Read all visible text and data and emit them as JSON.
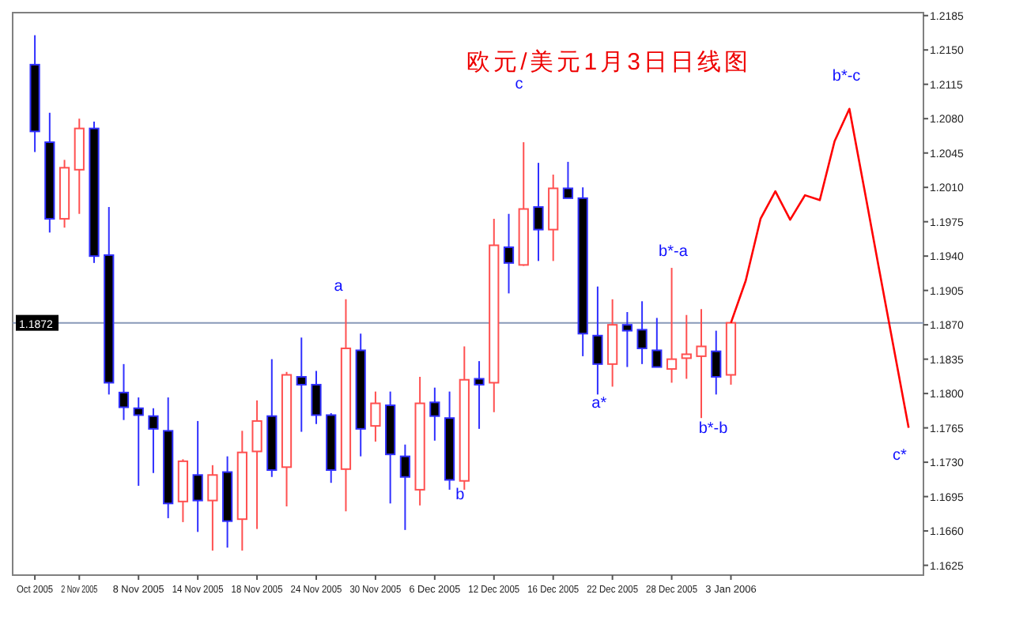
{
  "chart_data": {
    "type": "candlestick",
    "title": "欧元/美元1月3日日线图",
    "categories": [
      "Oct 2005",
      null,
      null,
      "2 Nov 2005",
      null,
      null,
      null,
      "8 Nov 2005",
      null,
      null,
      null,
      "14 Nov 2005",
      null,
      null,
      null,
      "18 Nov 2005",
      null,
      null,
      null,
      "24 Nov 2005",
      null,
      null,
      null,
      "30 Nov 2005",
      null,
      null,
      null,
      "6 Dec 2005",
      null,
      null,
      null,
      "12 Dec 2005",
      null,
      null,
      null,
      "16 Dec 2005",
      null,
      null,
      null,
      "22 Dec 2005",
      null,
      null,
      null,
      "28 Dec 2005",
      null,
      null,
      null,
      "3 Jan 2006",
      null,
      null,
      null,
      null,
      null,
      null,
      null,
      null,
      null,
      null,
      null,
      null
    ],
    "ohlc": [
      [
        1.2135,
        1.2165,
        1.2046,
        1.2067
      ],
      [
        1.2056,
        1.2086,
        1.1964,
        1.1978
      ],
      [
        1.1978,
        1.2038,
        1.1969,
        1.203
      ],
      [
        1.2028,
        1.208,
        1.1983,
        1.207
      ],
      [
        1.207,
        1.2077,
        1.1933,
        1.194
      ],
      [
        1.1941,
        1.199,
        1.1799,
        1.1811
      ],
      [
        1.1801,
        1.183,
        1.1773,
        1.1786
      ],
      [
        1.1785,
        1.1796,
        1.1706,
        1.1778
      ],
      [
        1.1777,
        1.1785,
        1.1719,
        1.1764
      ],
      [
        1.1762,
        1.1796,
        1.1673,
        1.1688
      ],
      [
        1.169,
        1.1733,
        1.1669,
        1.1731
      ],
      [
        1.1717,
        1.1772,
        1.1659,
        1.1691
      ],
      [
        1.1691,
        1.1727,
        1.164,
        1.1717
      ],
      [
        1.172,
        1.1736,
        1.1643,
        1.167
      ],
      [
        1.1672,
        1.1762,
        1.164,
        1.174
      ],
      [
        1.1741,
        1.1793,
        1.1662,
        1.1772
      ],
      [
        1.1777,
        1.1835,
        1.1715,
        1.1722
      ],
      [
        1.1725,
        1.1822,
        1.1685,
        1.1819
      ],
      [
        1.1817,
        1.1857,
        1.1761,
        1.1809
      ],
      [
        1.1809,
        1.1823,
        1.1769,
        1.1778
      ],
      [
        1.1778,
        1.178,
        1.1709,
        1.1722
      ],
      [
        1.1723,
        1.1896,
        1.168,
        1.1846
      ],
      [
        1.1844,
        1.1861,
        1.1736,
        1.1764
      ],
      [
        1.1767,
        1.1802,
        1.1751,
        1.179
      ],
      [
        1.1788,
        1.1802,
        1.1688,
        1.1738
      ],
      [
        1.1736,
        1.1748,
        1.1661,
        1.1715
      ],
      [
        1.1702,
        1.1817,
        1.1686,
        1.179
      ],
      [
        1.1791,
        1.1806,
        1.1752,
        1.1777
      ],
      [
        1.1775,
        1.1802,
        1.1702,
        1.1712
      ],
      [
        1.1711,
        1.1848,
        1.1702,
        1.1814
      ],
      [
        1.1815,
        1.1833,
        1.1764,
        1.1809
      ],
      [
        1.1811,
        1.1978,
        1.1781,
        1.1951
      ],
      [
        1.1949,
        1.1983,
        1.1902,
        1.1933
      ],
      [
        1.1931,
        1.2056,
        1.193,
        1.1988
      ],
      [
        1.199,
        1.2035,
        1.1935,
        1.1967
      ],
      [
        1.1967,
        1.2023,
        1.1935,
        1.2009
      ],
      [
        1.2009,
        1.2036,
        1.1999,
        1.1999
      ],
      [
        1.1999,
        1.201,
        1.1838,
        1.1861
      ],
      [
        1.1859,
        1.1909,
        1.1799,
        1.183
      ],
      [
        1.183,
        1.1896,
        1.1807,
        1.187
      ],
      [
        1.187,
        1.1883,
        1.1827,
        1.1864
      ],
      [
        1.1865,
        1.1894,
        1.183,
        1.1846
      ],
      [
        1.1844,
        1.1877,
        1.1827,
        1.1827
      ],
      [
        1.1825,
        1.1928,
        1.1811,
        1.1835
      ],
      [
        1.1836,
        1.188,
        1.1815,
        1.184
      ],
      [
        1.1838,
        1.1886,
        1.1775,
        1.1848
      ],
      [
        1.1843,
        1.1864,
        1.1799,
        1.1817
      ],
      [
        1.1819,
        1.1872,
        1.1809,
        1.1872
      ],
      null,
      null,
      null,
      null,
      null,
      null,
      null,
      null,
      null,
      null,
      null,
      null
    ],
    "colors": [
      "#3030ff",
      "#3030ff",
      "#ff5050",
      "#ff5050",
      "#3030ff",
      "#3030ff",
      "#3030ff",
      "#3030ff",
      "#3030ff",
      "#3030ff",
      "#ff5050",
      "#3030ff",
      "#ff5050",
      "#3030ff",
      "#ff5050",
      "#ff5050",
      "#3030ff",
      "#ff5050",
      "#3030ff",
      "#3030ff",
      "#3030ff",
      "#ff5050",
      "#3030ff",
      "#ff5050",
      "#3030ff",
      "#3030ff",
      "#ff5050",
      "#3030ff",
      "#3030ff",
      "#ff5050",
      "#3030ff",
      "#ff5050",
      "#3030ff",
      "#ff5050",
      "#3030ff",
      "#ff5050",
      "#3030ff",
      "#3030ff",
      "#3030ff",
      "#ff5050",
      "#3030ff",
      "#3030ff",
      "#3030ff",
      "#ff5050",
      "#ff5050",
      "#ff5050",
      "#3030ff",
      "#ff5050",
      null,
      null,
      null,
      null,
      null,
      null,
      null,
      null,
      null,
      null,
      null,
      null
    ],
    "series": [
      {
        "type": "line",
        "color": "#ff0000",
        "values": [
          null,
          null,
          null,
          null,
          null,
          null,
          null,
          null,
          null,
          null,
          null,
          null,
          null,
          null,
          null,
          null,
          null,
          null,
          null,
          null,
          null,
          null,
          null,
          null,
          null,
          null,
          null,
          null,
          null,
          null,
          null,
          null,
          null,
          null,
          null,
          null,
          null,
          null,
          null,
          null,
          null,
          null,
          null,
          null,
          null,
          null,
          null,
          1.1872,
          1.1915,
          1.1978,
          1.2006,
          1.1977,
          1.2002,
          1.1997,
          1.2057,
          1.209,
          1.2009,
          1.1927,
          1.1846,
          1.1765
        ]
      }
    ],
    "ylim": [
      1.1615,
      1.2188
    ],
    "yticks": [
      1.1625,
      {
        "value": 1.166,
        "label": "1.1660"
      },
      1.1695,
      {
        "value": 1.173,
        "label": "1.1730"
      },
      1.1765,
      {
        "value": 1.18,
        "label": "1.1800"
      },
      1.1835,
      {
        "value": 1.187,
        "label": "1.1870"
      },
      1.1905,
      {
        "value": 1.194,
        "label": "1.1940"
      },
      1.1975,
      {
        "value": 1.201,
        "label": "1.2010"
      },
      1.2045,
      {
        "value": 1.208,
        "label": "1.2080"
      },
      1.2115,
      {
        "value": 1.215,
        "label": "1.2150"
      },
      1.2185
    ],
    "ref_lines": [
      {
        "axis": "y",
        "value": 1.1872,
        "label": "1.1872",
        "color": "#8898b8"
      }
    ],
    "annotations": [
      "a",
      "b",
      "c",
      "a*",
      "b*-a",
      "b*-b",
      "b*-c",
      "c*"
    ]
  }
}
